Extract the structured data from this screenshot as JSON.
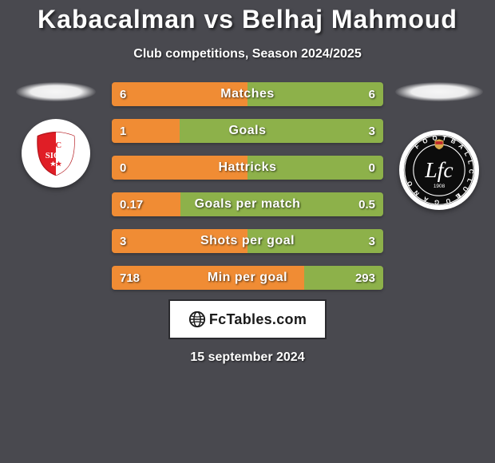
{
  "title": "Kabacalman vs Belhaj Mahmoud",
  "subtitle": "Club competitions, Season 2024/2025",
  "date": "15 september 2024",
  "footer_brand": "FcTables.com",
  "colors": {
    "background": "#49494f",
    "bar_orange": "#f08c34",
    "bar_green": "#8db14a",
    "text": "#ffffff"
  },
  "left_team": {
    "name": "FC Sion",
    "badge_bg": "#ffffff",
    "badge_primary": "#e01e26",
    "badge_secondary": "#ffffff"
  },
  "right_team": {
    "name": "FC Lugano",
    "badge_bg": "#ffffff",
    "badge_primary": "#0c0c0c",
    "badge_secondary": "#ffffff"
  },
  "stats": [
    {
      "label": "Matches",
      "left_val": "6",
      "right_val": "6",
      "left_pct": 50,
      "right_pct": 50
    },
    {
      "label": "Goals",
      "left_val": "1",
      "right_val": "3",
      "left_pct": 25,
      "right_pct": 75
    },
    {
      "label": "Hattricks",
      "left_val": "0",
      "right_val": "0",
      "left_pct": 50,
      "right_pct": 50
    },
    {
      "label": "Goals per match",
      "left_val": "0.17",
      "right_val": "0.5",
      "left_pct": 25.4,
      "right_pct": 74.6
    },
    {
      "label": "Shots per goal",
      "left_val": "3",
      "right_val": "3",
      "left_pct": 50,
      "right_pct": 50
    },
    {
      "label": "Min per goal",
      "left_val": "718",
      "right_val": "293",
      "left_pct": 71,
      "right_pct": 29
    }
  ],
  "bar_style": {
    "height": 30,
    "gap": 16,
    "radius": 4,
    "label_fontsize": 16,
    "value_fontsize": 15
  }
}
